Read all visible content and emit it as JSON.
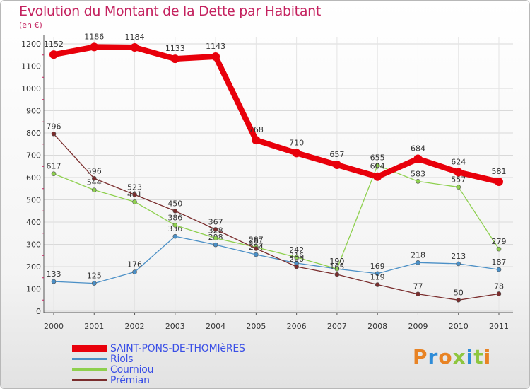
{
  "title": "Evolution du Montant de la Dette par Habitant",
  "unit": "(en €)",
  "logo_text": "Proxiti",
  "colors": {
    "title": "#c4225f",
    "legend_text": "#3a4fe6",
    "grid": "#d9d9d9",
    "axis": "#555555"
  },
  "chart_data": {
    "type": "line",
    "title": "Evolution du Montant de la Dette par Habitant",
    "subtitle": "(en €)",
    "xlabel": "",
    "ylabel": "",
    "grid": true,
    "legend_position": "bottom-left",
    "x": [
      "2000",
      "2001",
      "2002",
      "2003",
      "2004",
      "2005",
      "2006",
      "2007",
      "2008",
      "2009",
      "2010",
      "2011"
    ],
    "ylim": [
      0,
      1200
    ],
    "yticks": [
      0,
      100,
      200,
      300,
      400,
      500,
      600,
      700,
      800,
      900,
      1000,
      1100,
      1200
    ],
    "series": [
      {
        "name": "Riols",
        "color": "#4a8fc6",
        "values": [
          133,
          125,
          176,
          336,
          298,
          254,
          216,
          190,
          169,
          218,
          213,
          187
        ],
        "labels": [
          "133",
          "125",
          "176",
          "336",
          "298",
          "254",
          "216",
          "190",
          "169",
          "218",
          "213",
          "187"
        ]
      },
      {
        "name": "Courniou",
        "color": "#8ed04e",
        "values": [
          617,
          544,
          491,
          386,
          328,
          287,
          242,
          190,
          655,
          583,
          557,
          279
        ],
        "labels": [
          "617",
          "544",
          "491",
          "386",
          "328",
          "287",
          "242",
          "190",
          "655",
          "583",
          "557",
          "279"
        ]
      },
      {
        "name": "Prémian",
        "color": "#7a2d2d",
        "values": [
          796,
          596,
          523,
          450,
          367,
          281,
          200,
          165,
          119,
          77,
          50,
          78
        ],
        "labels": [
          "796",
          "596",
          "523",
          "450",
          "367",
          "281",
          "200",
          "165",
          "119",
          "77",
          "50",
          "78"
        ]
      },
      {
        "name": "SAINT-PONS-DE-THOMIèRES",
        "color": "#e8000b",
        "values": [
          1152,
          1186,
          1184,
          1133,
          1143,
          768,
          710,
          657,
          604,
          684,
          624,
          581
        ],
        "labels": [
          "1152",
          "1186",
          "1184",
          "1133",
          "1143",
          "768",
          "710",
          "657",
          "604",
          "684",
          "624",
          "581"
        ]
      }
    ]
  },
  "legend": [
    {
      "name": "SAINT-PONS-DE-THOMIèRES",
      "color": "#e8000b"
    },
    {
      "name": "Riols",
      "color": "#4a8fc6"
    },
    {
      "name": "Courniou",
      "color": "#8ed04e"
    },
    {
      "name": "Prémian",
      "color": "#7a2d2d"
    }
  ]
}
